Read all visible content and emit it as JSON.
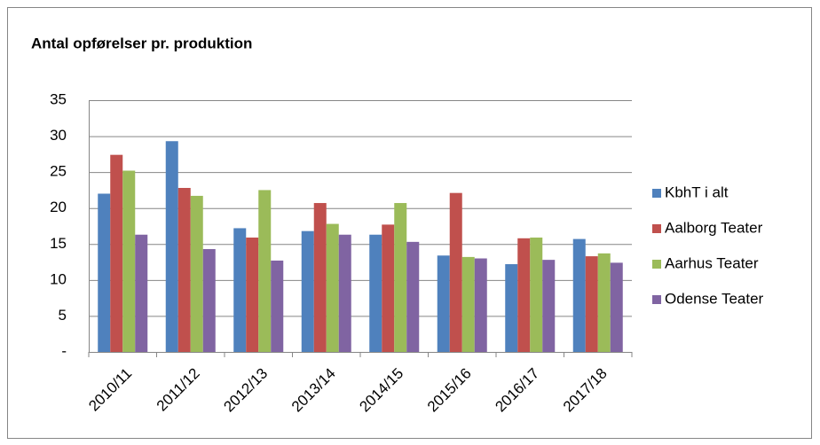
{
  "chart_data": {
    "type": "bar",
    "title": "Antal opførelser pr. produktion",
    "categories": [
      "2010/11",
      "2011/12",
      "2012/13",
      "2013/14",
      "2014/15",
      "2015/16",
      "2016/17",
      "2017/18"
    ],
    "series": [
      {
        "name": "KbhT i alt",
        "color": "#4f81bd",
        "values": [
          22.0,
          29.3,
          17.2,
          16.8,
          16.3,
          13.4,
          12.2,
          15.7
        ]
      },
      {
        "name": "Aalborg Teater",
        "color": "#c0504d",
        "values": [
          27.4,
          22.8,
          15.9,
          20.7,
          17.7,
          22.1,
          15.8,
          13.3
        ]
      },
      {
        "name": "Aarhus Teater",
        "color": "#9bbb59",
        "values": [
          25.2,
          21.7,
          22.5,
          17.8,
          20.7,
          13.2,
          15.9,
          13.7
        ]
      },
      {
        "name": "Odense Teater",
        "color": "#8064a2",
        "values": [
          16.3,
          14.3,
          12.7,
          16.3,
          15.3,
          13.0,
          12.8,
          12.4
        ]
      }
    ],
    "ylim": [
      0,
      35
    ],
    "yticks": [
      {
        "value": 0,
        "label": "-"
      },
      5,
      10,
      15,
      20,
      25,
      30,
      35
    ],
    "grid": true,
    "legend": "right"
  }
}
